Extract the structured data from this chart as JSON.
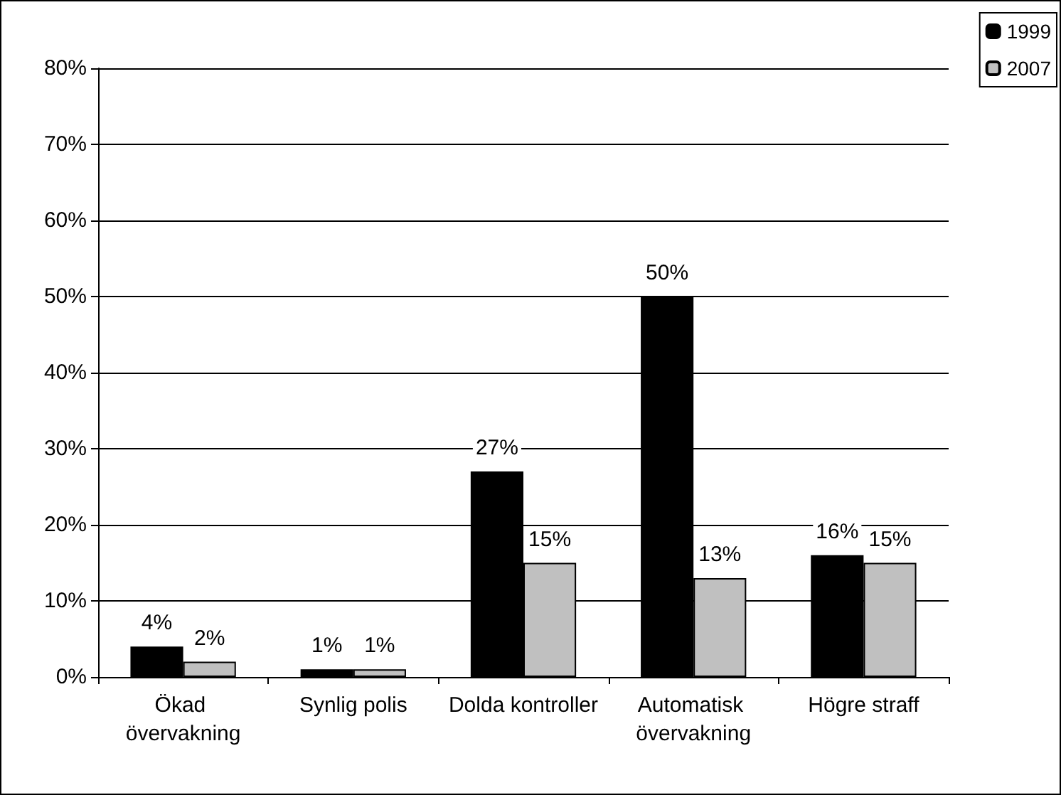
{
  "chart_data": {
    "type": "bar",
    "categories": [
      "Ökad övervakning",
      "Synlig polis",
      "Dolda kontroller",
      "Automatisk övervakning",
      "Högre straff"
    ],
    "series": [
      {
        "name": "1999",
        "color": "#000000",
        "values": [
          4,
          1,
          27,
          50,
          16
        ],
        "value_labels": [
          "4%",
          "1%",
          "27%",
          "50%",
          "16%"
        ]
      },
      {
        "name": "2007",
        "color": "#c0c0c0",
        "values": [
          2,
          1,
          15,
          13,
          15
        ],
        "value_labels": [
          "2%",
          "1%",
          "15%",
          "13%",
          "15%"
        ]
      }
    ],
    "ylim": [
      0,
      80
    ],
    "yticks": [
      {
        "value": 0,
        "label": "0%"
      },
      {
        "value": 10,
        "label": "10%"
      },
      {
        "value": 20,
        "label": "20%"
      },
      {
        "value": 30,
        "label": "30%"
      },
      {
        "value": 40,
        "label": "40%"
      },
      {
        "value": 50,
        "label": "50%"
      },
      {
        "value": 60,
        "label": "60%"
      },
      {
        "value": 70,
        "label": "70%"
      },
      {
        "value": 80,
        "label": "80%"
      }
    ],
    "grid": "y",
    "legend": "top right"
  }
}
